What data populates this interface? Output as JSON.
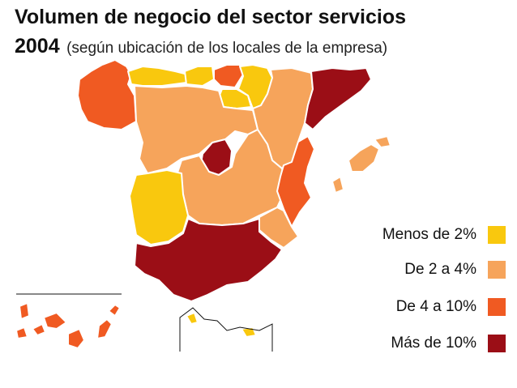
{
  "title": "Volumen de negocio del sector servicios",
  "subtitle_year": "2004",
  "subtitle_note": "(según ubicación de los locales de la empresa)",
  "colors": {
    "lt2": "#f9c80e",
    "2to4": "#f6a45b",
    "4to10": "#f05a22",
    "gt10": "#9b0e16",
    "border": "#ffffff"
  },
  "legend": [
    {
      "label": "Menos de 2%",
      "class": "lt2"
    },
    {
      "label": "De 2 a 4%",
      "class": "2to4"
    },
    {
      "label": "De 4 a 10%",
      "class": "4to10"
    },
    {
      "label": "Más de 10%",
      "class": "gt10"
    }
  ],
  "regions": [
    {
      "name": "Galicia",
      "class": "4to10"
    },
    {
      "name": "Asturias",
      "class": "lt2"
    },
    {
      "name": "Cantabria",
      "class": "lt2"
    },
    {
      "name": "País Vasco",
      "class": "4to10"
    },
    {
      "name": "Navarra",
      "class": "lt2"
    },
    {
      "name": "La Rioja",
      "class": "lt2"
    },
    {
      "name": "Aragón",
      "class": "2to4"
    },
    {
      "name": "Cataluña",
      "class": "gt10"
    },
    {
      "name": "Castilla y León",
      "class": "2to4"
    },
    {
      "name": "Madrid",
      "class": "gt10"
    },
    {
      "name": "Castilla-La Mancha",
      "class": "2to4"
    },
    {
      "name": "Comunidad Valenciana",
      "class": "4to10"
    },
    {
      "name": "Baleares",
      "class": "2to4"
    },
    {
      "name": "Extremadura",
      "class": "lt2"
    },
    {
      "name": "Murcia",
      "class": "2to4"
    },
    {
      "name": "Andalucía",
      "class": "gt10"
    },
    {
      "name": "Canarias",
      "class": "4to10"
    },
    {
      "name": "Ceuta",
      "class": "lt2"
    },
    {
      "name": "Melilla",
      "class": "lt2"
    }
  ]
}
